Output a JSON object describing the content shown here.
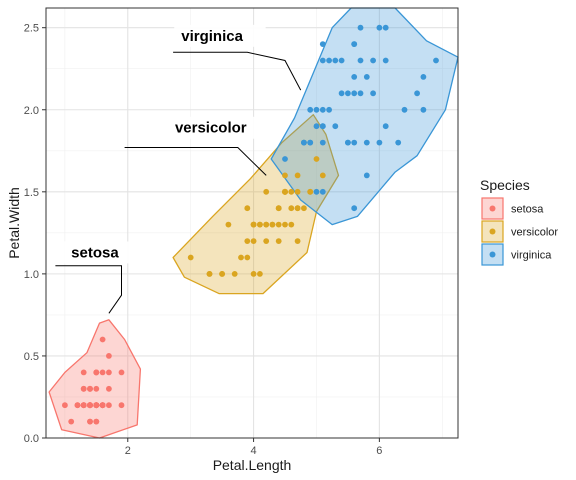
{
  "chart_data": {
    "type": "scatter",
    "xlabel": "Petal.Length",
    "ylabel": "Petal.Width",
    "xlim": [
      0.7,
      7.25
    ],
    "ylim": [
      0.0,
      2.62
    ],
    "x_major_ticks": [
      2,
      4,
      6
    ],
    "x_minor_ticks": [
      1,
      3,
      5,
      7
    ],
    "y_major_ticks": [
      0.0,
      0.5,
      1.0,
      1.5,
      2.0,
      2.5
    ],
    "y_tick_labels": [
      "0.0",
      "0.5",
      "1.0",
      "1.5",
      "2.0",
      "2.5"
    ],
    "y_minor_ticks": [
      0.25,
      0.75,
      1.25,
      1.75,
      2.25
    ],
    "grid": true,
    "legend": {
      "title": "Species",
      "position": "right"
    },
    "series": [
      {
        "name": "setosa",
        "color": "#F8766D",
        "label": "setosa",
        "label_at": [
          1.1,
          1.1
        ],
        "connector": [
          [
            0.85,
            1.05
          ],
          [
            1.9,
            1.05
          ],
          [
            1.9,
            0.87
          ],
          [
            1.7,
            0.76
          ]
        ],
        "points": [
          [
            1.4,
            0.2
          ],
          [
            1.4,
            0.2
          ],
          [
            1.3,
            0.2
          ],
          [
            1.5,
            0.2
          ],
          [
            1.4,
            0.2
          ],
          [
            1.7,
            0.4
          ],
          [
            1.4,
            0.3
          ],
          [
            1.5,
            0.2
          ],
          [
            1.4,
            0.2
          ],
          [
            1.5,
            0.1
          ],
          [
            1.5,
            0.2
          ],
          [
            1.6,
            0.2
          ],
          [
            1.4,
            0.1
          ],
          [
            1.1,
            0.1
          ],
          [
            1.2,
            0.2
          ],
          [
            1.5,
            0.4
          ],
          [
            1.3,
            0.4
          ],
          [
            1.4,
            0.3
          ],
          [
            1.7,
            0.3
          ],
          [
            1.5,
            0.3
          ],
          [
            1.7,
            0.2
          ],
          [
            1.5,
            0.4
          ],
          [
            1.0,
            0.2
          ],
          [
            1.7,
            0.5
          ],
          [
            1.9,
            0.2
          ],
          [
            1.6,
            0.2
          ],
          [
            1.6,
            0.4
          ],
          [
            1.5,
            0.2
          ],
          [
            1.4,
            0.2
          ],
          [
            1.6,
            0.2
          ],
          [
            1.6,
            0.2
          ],
          [
            1.5,
            0.4
          ],
          [
            1.5,
            0.1
          ],
          [
            1.4,
            0.2
          ],
          [
            1.5,
            0.2
          ],
          [
            1.2,
            0.2
          ],
          [
            1.3,
            0.2
          ],
          [
            1.4,
            0.1
          ],
          [
            1.3,
            0.2
          ],
          [
            1.5,
            0.2
          ],
          [
            1.3,
            0.3
          ],
          [
            1.3,
            0.3
          ],
          [
            1.3,
            0.2
          ],
          [
            1.6,
            0.6
          ],
          [
            1.9,
            0.4
          ],
          [
            1.4,
            0.3
          ],
          [
            1.6,
            0.2
          ],
          [
            1.4,
            0.2
          ],
          [
            1.5,
            0.2
          ],
          [
            1.4,
            0.2
          ]
        ],
        "hull": [
          [
            0.75,
            0.28
          ],
          [
            0.95,
            0.05
          ],
          [
            1.55,
            0.0
          ],
          [
            2.15,
            0.08
          ],
          [
            2.2,
            0.42
          ],
          [
            1.95,
            0.6
          ],
          [
            1.7,
            0.72
          ],
          [
            1.55,
            0.7
          ],
          [
            1.35,
            0.52
          ],
          [
            1.0,
            0.4
          ]
        ]
      },
      {
        "name": "versicolor",
        "color": "#DAA520",
        "label": "versicolor",
        "label_at": [
          2.75,
          1.86
        ],
        "connector": [
          [
            1.95,
            1.77
          ],
          [
            3.75,
            1.77
          ],
          [
            4.2,
            1.6
          ]
        ],
        "points": [
          [
            4.7,
            1.4
          ],
          [
            4.5,
            1.5
          ],
          [
            4.9,
            1.5
          ],
          [
            4.0,
            1.3
          ],
          [
            4.6,
            1.5
          ],
          [
            4.5,
            1.3
          ],
          [
            4.7,
            1.6
          ],
          [
            3.3,
            1.0
          ],
          [
            4.6,
            1.3
          ],
          [
            3.9,
            1.4
          ],
          [
            3.5,
            1.0
          ],
          [
            4.2,
            1.5
          ],
          [
            4.0,
            1.0
          ],
          [
            4.7,
            1.4
          ],
          [
            3.6,
            1.3
          ],
          [
            4.4,
            1.4
          ],
          [
            4.5,
            1.5
          ],
          [
            4.1,
            1.0
          ],
          [
            4.5,
            1.5
          ],
          [
            3.9,
            1.1
          ],
          [
            4.8,
            1.8
          ],
          [
            4.0,
            1.3
          ],
          [
            4.9,
            1.5
          ],
          [
            4.7,
            1.2
          ],
          [
            4.3,
            1.3
          ],
          [
            4.4,
            1.4
          ],
          [
            4.8,
            1.4
          ],
          [
            5.0,
            1.7
          ],
          [
            4.5,
            1.5
          ],
          [
            3.5,
            1.0
          ],
          [
            3.8,
            1.1
          ],
          [
            3.7,
            1.0
          ],
          [
            3.9,
            1.2
          ],
          [
            5.1,
            1.6
          ],
          [
            4.5,
            1.5
          ],
          [
            4.5,
            1.6
          ],
          [
            4.7,
            1.5
          ],
          [
            4.4,
            1.3
          ],
          [
            4.1,
            1.3
          ],
          [
            4.0,
            1.3
          ],
          [
            4.4,
            1.2
          ],
          [
            4.6,
            1.4
          ],
          [
            4.0,
            1.2
          ],
          [
            3.3,
            1.0
          ],
          [
            4.2,
            1.3
          ],
          [
            4.2,
            1.2
          ],
          [
            4.2,
            1.3
          ],
          [
            4.3,
            1.3
          ],
          [
            3.0,
            1.1
          ],
          [
            4.1,
            1.3
          ]
        ],
        "hull": [
          [
            2.72,
            1.1
          ],
          [
            2.9,
            0.98
          ],
          [
            3.45,
            0.88
          ],
          [
            4.15,
            0.88
          ],
          [
            4.85,
            1.13
          ],
          [
            5.0,
            1.38
          ],
          [
            5.35,
            1.6
          ],
          [
            5.15,
            1.85
          ],
          [
            4.95,
            1.97
          ],
          [
            4.45,
            1.8
          ],
          [
            3.95,
            1.58
          ],
          [
            3.35,
            1.35
          ]
        ]
      },
      {
        "name": "virginica",
        "color": "#3A96D6",
        "label": "virginica",
        "label_at": [
          2.85,
          2.42
        ],
        "connector": [
          [
            2.72,
            2.35
          ],
          [
            3.9,
            2.35
          ],
          [
            4.5,
            2.3
          ],
          [
            4.75,
            2.12
          ]
        ],
        "points": [
          [
            6.0,
            2.5
          ],
          [
            5.1,
            1.9
          ],
          [
            5.9,
            2.1
          ],
          [
            5.6,
            1.8
          ],
          [
            5.8,
            2.2
          ],
          [
            6.6,
            2.1
          ],
          [
            4.5,
            1.7
          ],
          [
            6.3,
            1.8
          ],
          [
            5.8,
            1.8
          ],
          [
            6.1,
            2.5
          ],
          [
            5.1,
            2.0
          ],
          [
            5.3,
            1.9
          ],
          [
            5.5,
            2.1
          ],
          [
            5.0,
            2.0
          ],
          [
            5.1,
            2.4
          ],
          [
            5.3,
            2.3
          ],
          [
            5.5,
            1.8
          ],
          [
            6.7,
            2.2
          ],
          [
            6.9,
            2.3
          ],
          [
            5.0,
            1.5
          ],
          [
            5.7,
            2.3
          ],
          [
            4.9,
            2.0
          ],
          [
            6.7,
            2.0
          ],
          [
            4.9,
            1.8
          ],
          [
            5.7,
            2.1
          ],
          [
            6.0,
            1.8
          ],
          [
            4.8,
            1.8
          ],
          [
            4.9,
            1.8
          ],
          [
            5.6,
            2.1
          ],
          [
            5.8,
            1.6
          ],
          [
            6.1,
            1.9
          ],
          [
            6.4,
            2.0
          ],
          [
            5.6,
            2.2
          ],
          [
            5.1,
            1.5
          ],
          [
            5.6,
            1.4
          ],
          [
            6.1,
            2.3
          ],
          [
            5.6,
            2.4
          ],
          [
            5.5,
            1.8
          ],
          [
            4.8,
            1.8
          ],
          [
            5.4,
            2.1
          ],
          [
            5.6,
            2.4
          ],
          [
            5.1,
            2.3
          ],
          [
            5.1,
            1.9
          ],
          [
            5.9,
            2.3
          ],
          [
            5.7,
            2.5
          ],
          [
            5.2,
            2.3
          ],
          [
            5.0,
            1.9
          ],
          [
            5.2,
            2.0
          ],
          [
            5.4,
            2.3
          ],
          [
            5.1,
            1.8
          ]
        ],
        "hull": [
          [
            4.28,
            1.7
          ],
          [
            4.65,
            1.95
          ],
          [
            5.25,
            2.5
          ],
          [
            5.55,
            2.62
          ],
          [
            6.25,
            2.62
          ],
          [
            6.75,
            2.42
          ],
          [
            7.25,
            2.32
          ],
          [
            7.05,
            2.0
          ],
          [
            6.6,
            1.72
          ],
          [
            6.25,
            1.62
          ],
          [
            5.65,
            1.35
          ],
          [
            5.25,
            1.3
          ],
          [
            4.75,
            1.45
          ]
        ]
      }
    ]
  }
}
